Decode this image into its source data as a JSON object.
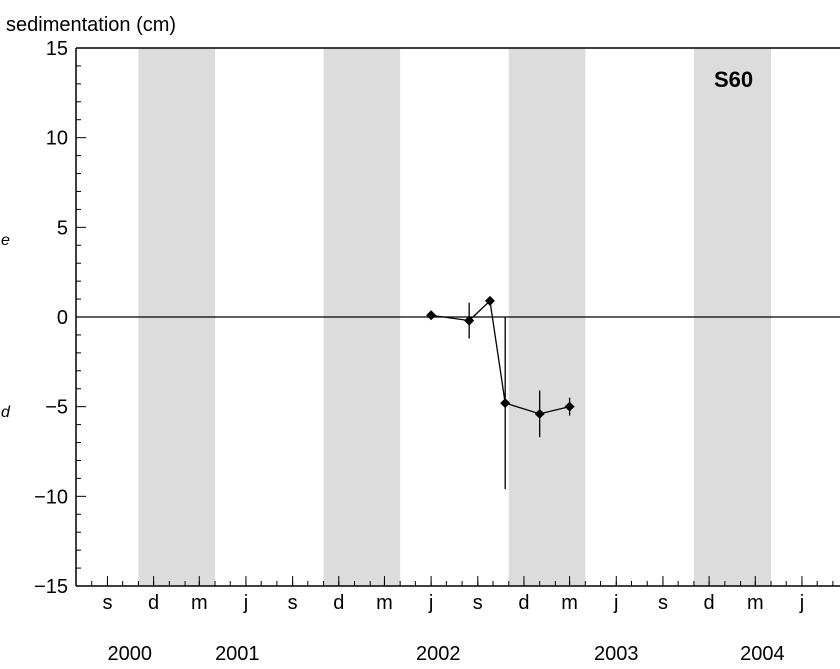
{
  "chart_data": {
    "type": "scatter",
    "ylabel": "sedimentation (cm)",
    "ylim": [
      -15,
      15
    ],
    "y_ticks": [
      15,
      10,
      5,
      0,
      -5,
      -10,
      -15
    ],
    "y_tick_labels": [
      "15",
      "10",
      "5",
      "0",
      "−5",
      "−10",
      "−15"
    ],
    "x_range": [
      "2000-07-01",
      "2004-08-15"
    ],
    "x_month_ticks": [
      {
        "date": "2000-09-01",
        "label": "s"
      },
      {
        "date": "2000-12-01",
        "label": "d"
      },
      {
        "date": "2001-03-01",
        "label": "m"
      },
      {
        "date": "2001-06-01",
        "label": "j"
      },
      {
        "date": "2001-09-01",
        "label": "s"
      },
      {
        "date": "2001-12-01",
        "label": "d"
      },
      {
        "date": "2002-03-01",
        "label": "m"
      },
      {
        "date": "2002-06-01",
        "label": "j"
      },
      {
        "date": "2002-09-01",
        "label": "s"
      },
      {
        "date": "2002-12-01",
        "label": "d"
      },
      {
        "date": "2003-03-01",
        "label": "m"
      },
      {
        "date": "2003-06-01",
        "label": "j"
      },
      {
        "date": "2003-09-01",
        "label": "s"
      },
      {
        "date": "2003-12-01",
        "label": "d"
      },
      {
        "date": "2004-03-01",
        "label": "m"
      },
      {
        "date": "2004-06-01",
        "label": "j"
      }
    ],
    "x_year_labels": [
      {
        "date": "2000-10-15",
        "label": "2000"
      },
      {
        "date": "2001-05-15",
        "label": "2001"
      },
      {
        "date": "2002-06-15",
        "label": "2002"
      },
      {
        "date": "2003-06-01",
        "label": "2003"
      },
      {
        "date": "2004-03-15",
        "label": "2004"
      }
    ],
    "shaded_periods": [
      [
        "2000-11-01",
        "2001-04-01"
      ],
      [
        "2001-11-01",
        "2002-04-01"
      ],
      [
        "2002-11-01",
        "2003-04-01"
      ],
      [
        "2003-11-01",
        "2004-04-01"
      ]
    ],
    "panel_label": "S60",
    "zero_line": true,
    "grid": false,
    "series": [
      {
        "points": [
          {
            "date": "2002-06-01",
            "y": 0.1,
            "err": 0
          },
          {
            "date": "2002-08-15",
            "y": -0.2,
            "err": 1.0
          },
          {
            "date": "2002-09-25",
            "y": 0.9,
            "err": 0
          },
          {
            "date": "2002-10-25",
            "y": -4.8,
            "err": 4.8
          },
          {
            "date": "2003-01-01",
            "y": -5.4,
            "err": 1.3
          },
          {
            "date": "2003-03-01",
            "y": -5.0,
            "err": 0.5
          }
        ]
      }
    ]
  },
  "margin_glyphs": [
    "e",
    "d"
  ],
  "colors": {
    "shade": "#dcdcdc",
    "ink": "#000000",
    "background": "#ffffff"
  }
}
